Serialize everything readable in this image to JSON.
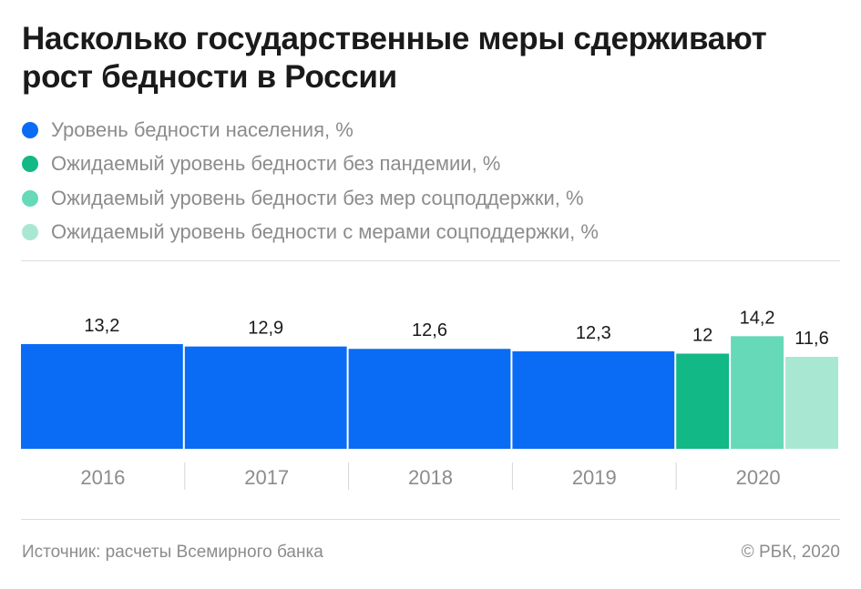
{
  "title": "Насколько государственные меры сдерживают рост бедности в России",
  "legend": [
    {
      "label": "Уровень бедности населения, %",
      "color": "#0a6cf5"
    },
    {
      "label": "Ожидаемый уровень бедности без пандемии, %",
      "color": "#12b886"
    },
    {
      "label": "Ожидаемый уровень бедности без мер соцподдержки, %",
      "color": "#66d9b8"
    },
    {
      "label": "Ожидаемый уровень бедности с мерами соцподдержки, %",
      "color": "#a8e8d2"
    }
  ],
  "chart_data": {
    "type": "bar",
    "categories": [
      "2016",
      "2017",
      "2018",
      "2019",
      "2020"
    ],
    "series": [
      {
        "name": "Уровень бедности населения, %",
        "values": [
          13.2,
          12.9,
          12.6,
          12.3,
          null
        ],
        "color": "#0a6cf5"
      },
      {
        "name": "Ожидаемый уровень бедности без пандемии, %",
        "values": [
          null,
          null,
          null,
          null,
          12
        ],
        "color": "#12b886"
      },
      {
        "name": "Ожидаемый уровень бедности без мер соцподдержки, %",
        "values": [
          null,
          null,
          null,
          null,
          14.2
        ],
        "color": "#66d9b8"
      },
      {
        "name": "Ожидаемый уровень бедности с мерами соцподдержки, %",
        "values": [
          null,
          null,
          null,
          null,
          11.6
        ],
        "color": "#a8e8d2"
      }
    ],
    "data_labels": [
      "13,2",
      "12,9",
      "12,6",
      "12,3",
      "12",
      "14,2",
      "11,6"
    ],
    "xlabel": "",
    "ylabel": "",
    "grid": false,
    "legend_position": "top-left"
  },
  "footer": {
    "source": "Источник: расчеты Всемирного банка",
    "copyright": "© РБК, 2020"
  }
}
